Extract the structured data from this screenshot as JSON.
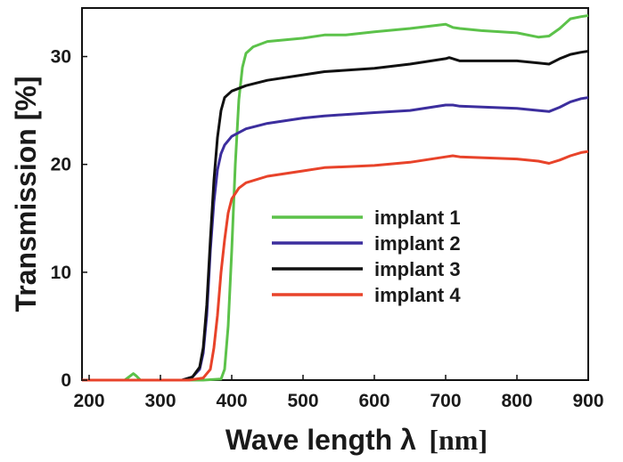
{
  "chart_data": {
    "type": "line",
    "xlabel_main": "Wave length λ",
    "xlabel_unit": "[nm]",
    "ylabel": "Transmission [%]",
    "xlim": [
      190,
      900
    ],
    "ylim": [
      0,
      34.5
    ],
    "xticks": [
      200,
      300,
      400,
      500,
      600,
      700,
      800,
      900
    ],
    "yticks": [
      0,
      10,
      20,
      30
    ],
    "grid": false,
    "legend_position": "center-right",
    "series": [
      {
        "name": "implant 1",
        "color": "#5cc24a",
        "x": [
          190,
          250,
          262,
          266,
          272,
          300,
          360,
          385,
          390,
          395,
          400,
          405,
          410,
          415,
          420,
          430,
          450,
          500,
          530,
          560,
          600,
          650,
          700,
          710,
          720,
          750,
          800,
          830,
          845,
          860,
          875,
          890,
          900
        ],
        "y": [
          0,
          0,
          0.6,
          0.4,
          0,
          0,
          0,
          0.1,
          1,
          5,
          12,
          20,
          26,
          29,
          30.3,
          30.9,
          31.4,
          31.7,
          32.0,
          32.0,
          32.3,
          32.6,
          33.0,
          32.7,
          32.6,
          32.4,
          32.2,
          31.8,
          31.9,
          32.6,
          33.5,
          33.7,
          33.8
        ]
      },
      {
        "name": "implant 2",
        "color": "#3c2e9e",
        "x": [
          190,
          330,
          345,
          355,
          360,
          365,
          370,
          375,
          380,
          385,
          390,
          400,
          420,
          450,
          500,
          530,
          600,
          650,
          700,
          710,
          720,
          800,
          830,
          845,
          860,
          875,
          890,
          900
        ],
        "y": [
          0,
          0,
          0.3,
          1,
          2.5,
          6,
          12,
          16.5,
          19.5,
          21,
          21.8,
          22.6,
          23.3,
          23.8,
          24.3,
          24.5,
          24.8,
          25.0,
          25.5,
          25.5,
          25.4,
          25.2,
          25.0,
          24.9,
          25.3,
          25.8,
          26.1,
          26.2
        ]
      },
      {
        "name": "implant 3",
        "color": "#111111",
        "x": [
          190,
          330,
          345,
          355,
          360,
          365,
          370,
          375,
          380,
          385,
          390,
          400,
          420,
          450,
          500,
          530,
          600,
          650,
          700,
          705,
          720,
          800,
          830,
          845,
          860,
          875,
          890,
          900
        ],
        "y": [
          0,
          0,
          0.3,
          1.2,
          3,
          7,
          13,
          18.5,
          22.5,
          25,
          26.2,
          26.8,
          27.3,
          27.8,
          28.3,
          28.6,
          28.9,
          29.3,
          29.8,
          29.9,
          29.6,
          29.6,
          29.4,
          29.3,
          29.8,
          30.2,
          30.4,
          30.5
        ]
      },
      {
        "name": "implant 4",
        "color": "#e8432a",
        "x": [
          190,
          340,
          360,
          370,
          375,
          380,
          385,
          390,
          395,
          400,
          410,
          420,
          450,
          500,
          530,
          600,
          650,
          700,
          710,
          720,
          800,
          830,
          845,
          860,
          875,
          890,
          900
        ],
        "y": [
          0,
          0,
          0.2,
          1,
          3,
          6,
          10,
          13,
          15.5,
          16.8,
          17.8,
          18.3,
          18.9,
          19.4,
          19.7,
          19.9,
          20.2,
          20.7,
          20.8,
          20.7,
          20.5,
          20.3,
          20.1,
          20.4,
          20.8,
          21.1,
          21.2
        ]
      }
    ]
  }
}
